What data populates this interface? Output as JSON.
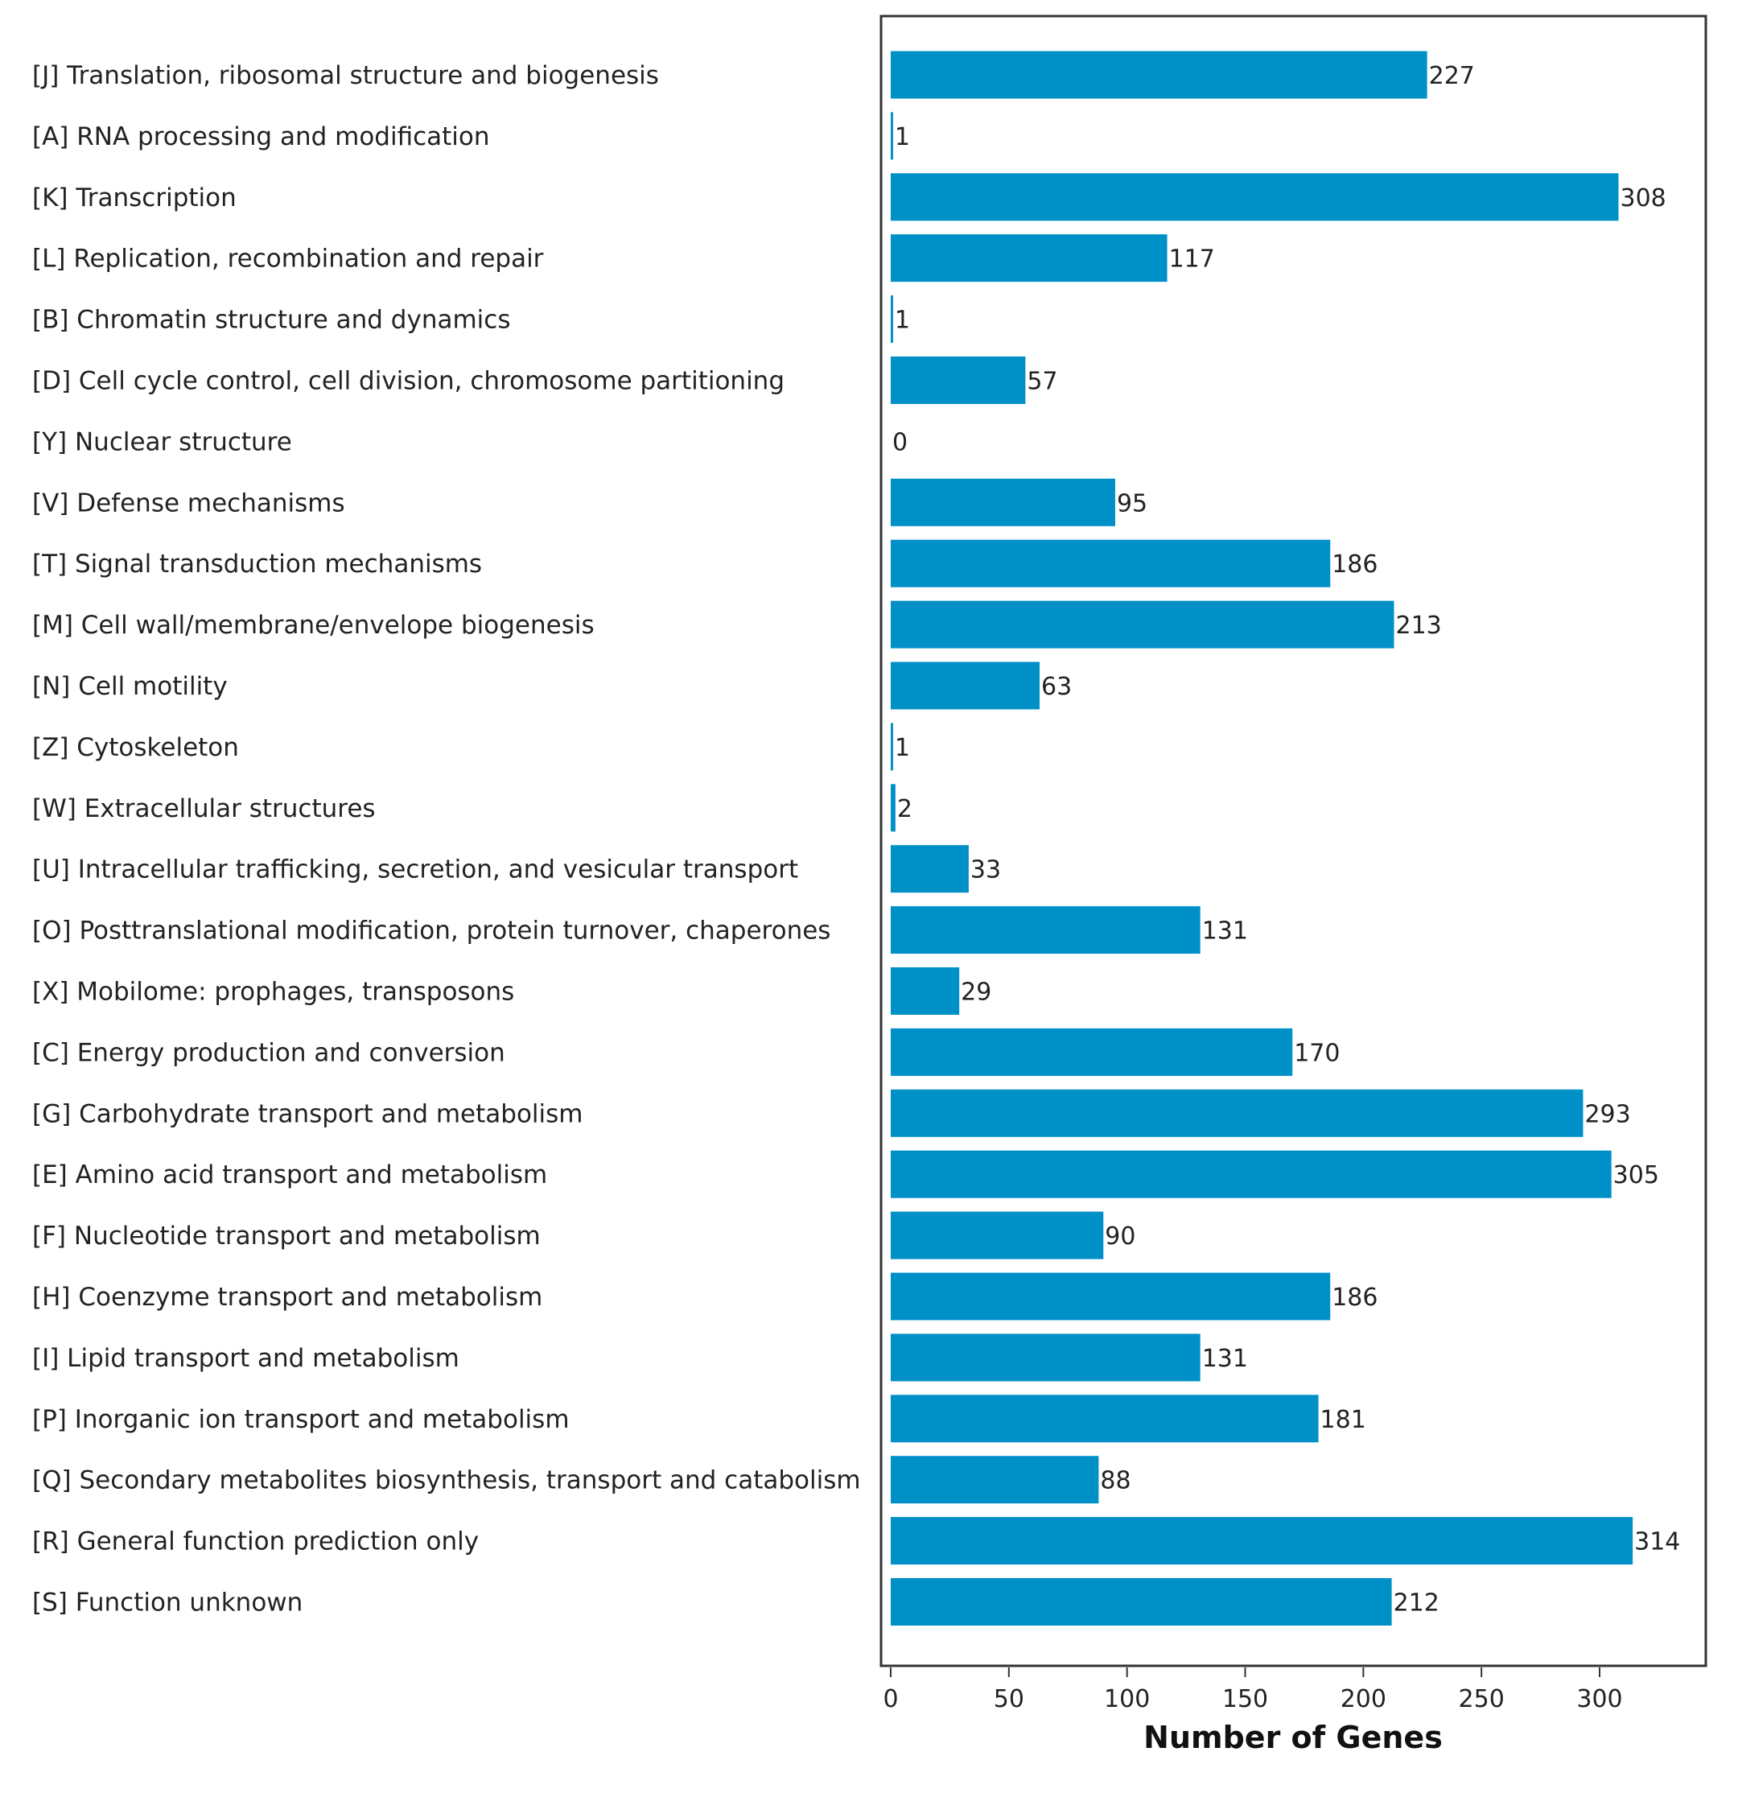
{
  "chart_data": {
    "type": "bar",
    "orientation": "horizontal",
    "title": "",
    "xlabel": "Number of Genes",
    "ylabel": "",
    "xlim": [
      -3.9,
      345
    ],
    "xticks": [
      0,
      50,
      100,
      150,
      200,
      250,
      300
    ],
    "grid": false,
    "bar_color": "#0090c8",
    "categories": [
      "[J] Translation, ribosomal structure and biogenesis",
      "[A] RNA processing and modification",
      "[K] Transcription",
      "[L] Replication, recombination and repair",
      "[B] Chromatin structure and dynamics",
      "[D] Cell cycle control, cell division, chromosome partitioning",
      "[Y] Nuclear structure",
      "[V] Defense mechanisms",
      "[T] Signal transduction mechanisms",
      "[M] Cell wall/membrane/envelope biogenesis",
      "[N] Cell motility",
      "[Z] Cytoskeleton",
      "[W] Extracellular structures",
      "[U] Intracellular trafficking, secretion, and vesicular transport",
      "[O] Posttranslational modification, protein turnover, chaperones",
      "[X] Mobilome: prophages, transposons",
      "[C] Energy production and conversion",
      "[G] Carbohydrate transport and metabolism",
      "[E] Amino acid transport and metabolism",
      "[F] Nucleotide transport and metabolism",
      "[H] Coenzyme transport and metabolism",
      "[I] Lipid transport and metabolism",
      "[P] Inorganic ion transport and metabolism",
      "[Q] Secondary metabolites biosynthesis, transport and catabolism",
      "[R] General function prediction only",
      "[S] Function unknown"
    ],
    "values": [
      227,
      1,
      308,
      117,
      1,
      57,
      0,
      95,
      186,
      213,
      63,
      1,
      2,
      33,
      131,
      29,
      170,
      293,
      305,
      90,
      186,
      131,
      181,
      88,
      314,
      212
    ]
  }
}
